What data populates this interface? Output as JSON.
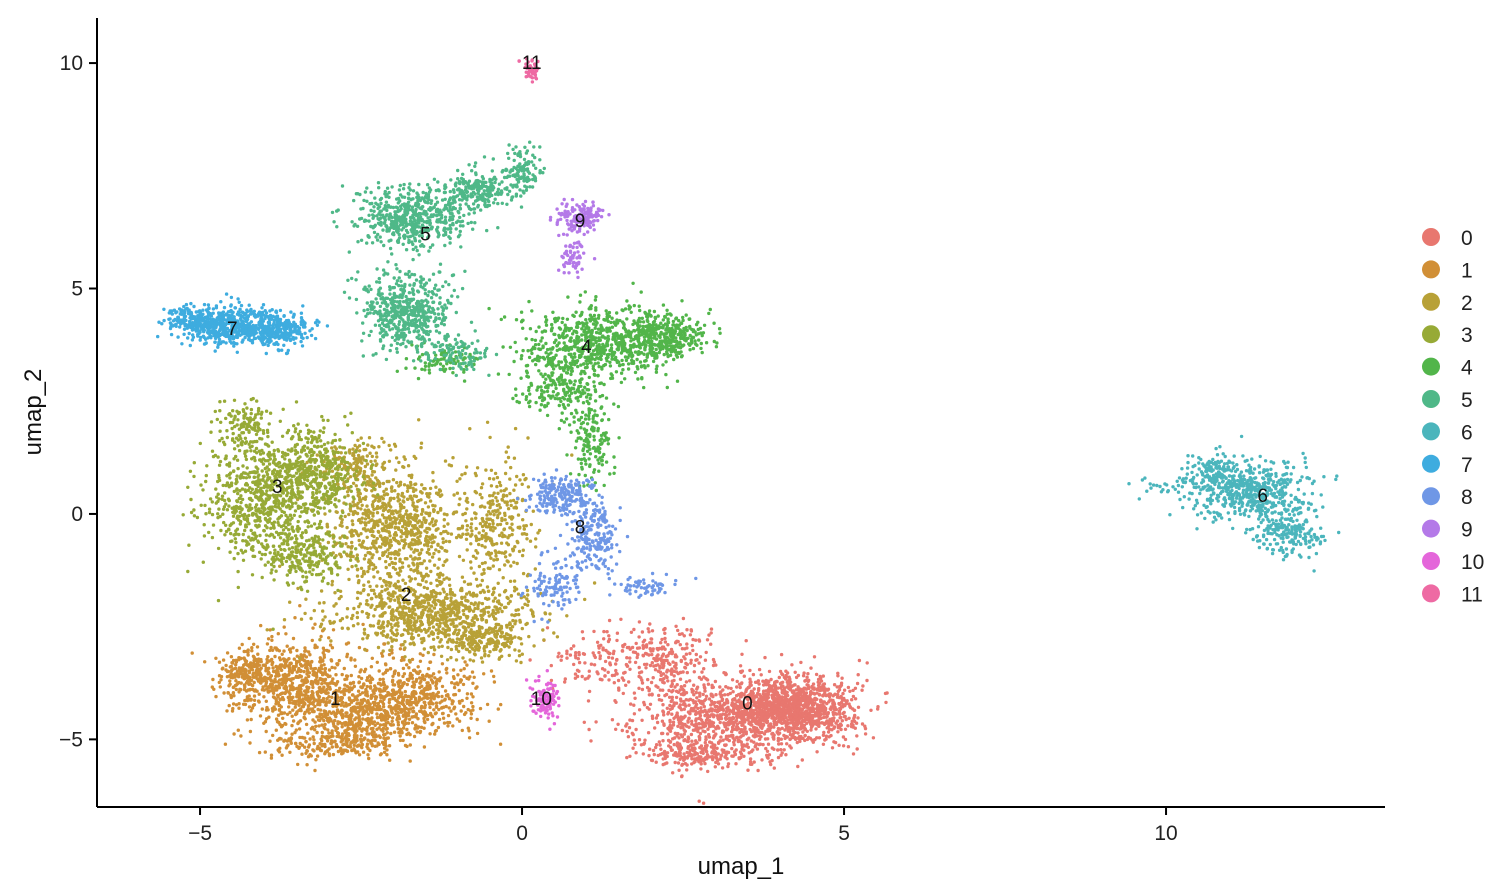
{
  "chart_data": {
    "type": "scatter",
    "title": "",
    "xlabel": "umap_1",
    "ylabel": "umap_2",
    "xlim": [
      -6.6,
      13.4
    ],
    "ylim": [
      -6.5,
      11.0
    ],
    "x_ticks": [
      -5,
      0,
      5,
      10
    ],
    "y_ticks": [
      -5,
      0,
      5,
      10
    ],
    "x_tick_labels": [
      "−5",
      "0",
      "5",
      "10"
    ],
    "y_tick_labels": [
      "−5",
      "0",
      "5",
      "10"
    ],
    "grid": false,
    "legend_position": "right",
    "series": [
      {
        "name": "0",
        "color": "#E8776F",
        "label_x": 3.5,
        "label_y": -4.2,
        "shape": [
          [
            4.2,
            -4.3,
            0.85,
            0.65,
            1200
          ],
          [
            3.0,
            -4.5,
            1.2,
            0.85,
            700
          ],
          [
            2.2,
            -3.2,
            0.7,
            0.7,
            250
          ],
          [
            1.1,
            -3.3,
            0.7,
            0.6,
            90
          ],
          [
            2.8,
            -5.3,
            0.9,
            0.3,
            200
          ]
        ]
      },
      {
        "name": "1",
        "color": "#D18F36",
        "label_x": -2.9,
        "label_y": -4.1,
        "shape": [
          [
            -3.6,
            -3.7,
            0.9,
            0.8,
            650
          ],
          [
            -2.4,
            -4.4,
            1.1,
            0.7,
            650
          ],
          [
            -1.6,
            -3.9,
            0.9,
            0.75,
            350
          ],
          [
            -4.3,
            -3.5,
            0.4,
            0.4,
            150
          ],
          [
            -3.0,
            -5.1,
            1.0,
            0.3,
            200
          ]
        ]
      },
      {
        "name": "2",
        "color": "#B8A137",
        "label_x": -1.8,
        "label_y": -1.8,
        "shape": [
          [
            -2.0,
            -0.3,
            0.9,
            1.2,
            800
          ],
          [
            -1.4,
            -2.2,
            1.4,
            0.7,
            800
          ],
          [
            -0.5,
            -0.2,
            0.6,
            1.3,
            300
          ],
          [
            -0.6,
            -2.8,
            0.5,
            0.4,
            200
          ],
          [
            -2.6,
            1.1,
            0.5,
            0.5,
            150
          ]
        ]
      },
      {
        "name": "3",
        "color": "#97AA36",
        "label_x": -3.8,
        "label_y": 0.6,
        "shape": [
          [
            -4.1,
            0.4,
            0.7,
            1.2,
            650
          ],
          [
            -3.2,
            0.9,
            0.6,
            0.9,
            450
          ],
          [
            -3.4,
            -0.9,
            0.6,
            0.6,
            250
          ],
          [
            -4.3,
            2.0,
            0.4,
            0.4,
            100
          ]
        ]
      },
      {
        "name": "4",
        "color": "#52B54A",
        "label_x": 1.0,
        "label_y": 3.7,
        "shape": [
          [
            1.2,
            3.8,
            1.1,
            0.7,
            700
          ],
          [
            2.2,
            4.0,
            0.6,
            0.4,
            300
          ],
          [
            0.6,
            2.8,
            0.6,
            0.6,
            220
          ],
          [
            1.1,
            1.6,
            0.3,
            0.8,
            150
          ],
          [
            -1.2,
            3.4,
            0.5,
            0.3,
            80
          ]
        ]
      },
      {
        "name": "5",
        "color": "#4FB888",
        "label_x": -1.5,
        "label_y": 6.2,
        "shape": [
          [
            -1.7,
            6.6,
            0.8,
            0.6,
            550
          ],
          [
            -1.8,
            4.5,
            0.6,
            0.8,
            550
          ],
          [
            -0.7,
            7.2,
            0.5,
            0.35,
            200
          ],
          [
            0.0,
            7.6,
            0.3,
            0.5,
            120
          ],
          [
            -1.0,
            3.6,
            0.4,
            0.4,
            100
          ]
        ]
      },
      {
        "name": "6",
        "color": "#4BB5BC",
        "label_x": 11.5,
        "label_y": 0.4,
        "shape": [
          [
            11.3,
            0.5,
            0.8,
            0.55,
            550
          ],
          [
            11.9,
            -0.4,
            0.5,
            0.5,
            200
          ],
          [
            10.7,
            1.0,
            0.4,
            0.3,
            100
          ],
          [
            10.1,
            0.6,
            0.5,
            0.15,
            25
          ]
        ]
      },
      {
        "name": "7",
        "color": "#3EACDF",
        "label_x": -4.5,
        "label_y": 4.1,
        "shape": [
          [
            -4.6,
            4.2,
            0.6,
            0.4,
            500
          ],
          [
            -3.8,
            4.1,
            0.5,
            0.35,
            300
          ],
          [
            -5.2,
            4.3,
            0.3,
            0.3,
            100
          ]
        ]
      },
      {
        "name": "8",
        "color": "#6F97E6",
        "label_x": 0.9,
        "label_y": -0.3,
        "shape": [
          [
            0.6,
            0.4,
            0.5,
            0.4,
            200
          ],
          [
            1.1,
            -0.5,
            0.4,
            0.7,
            200
          ],
          [
            0.5,
            -1.6,
            0.4,
            0.5,
            100
          ],
          [
            1.9,
            -1.6,
            0.5,
            0.25,
            60
          ]
        ]
      },
      {
        "name": "9",
        "color": "#B479E8",
        "label_x": 0.9,
        "label_y": 6.5,
        "shape": [
          [
            0.9,
            6.6,
            0.3,
            0.3,
            150
          ],
          [
            0.8,
            5.7,
            0.2,
            0.4,
            60
          ]
        ]
      },
      {
        "name": "10",
        "color": "#E466DA",
        "label_x": 0.3,
        "label_y": -4.1,
        "shape": [
          [
            0.4,
            -4.1,
            0.2,
            0.4,
            110
          ]
        ]
      },
      {
        "name": "11",
        "color": "#EE6AA3",
        "label_x": 0.15,
        "label_y": 10.0,
        "shape": [
          [
            0.15,
            9.9,
            0.12,
            0.25,
            45
          ]
        ]
      }
    ]
  }
}
